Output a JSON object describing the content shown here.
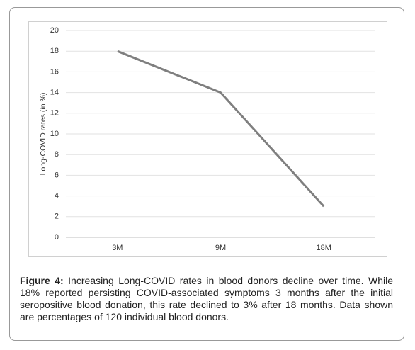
{
  "chart_data": {
    "type": "line",
    "title": null,
    "ylabel": "Long-COVID rates (in %)",
    "categories": [
      "3M",
      "9M",
      "18M"
    ],
    "values": [
      18,
      14,
      3
    ],
    "color": "#7f7f7f",
    "ylim": [
      0,
      20
    ],
    "yticks": [
      0,
      2,
      4,
      6,
      8,
      10,
      12,
      14,
      16,
      18,
      20
    ],
    "grid": true
  },
  "caption": {
    "label": "Figure 4:",
    "text": "Increasing Long-COVID rates in blood donors decline over time. While 18% reported persisting COVID-associated symptoms 3 months after the initial seropositive blood donation, this rate declined to 3% after 18 months. Data shown are percentages of 120 individual blood donors."
  }
}
